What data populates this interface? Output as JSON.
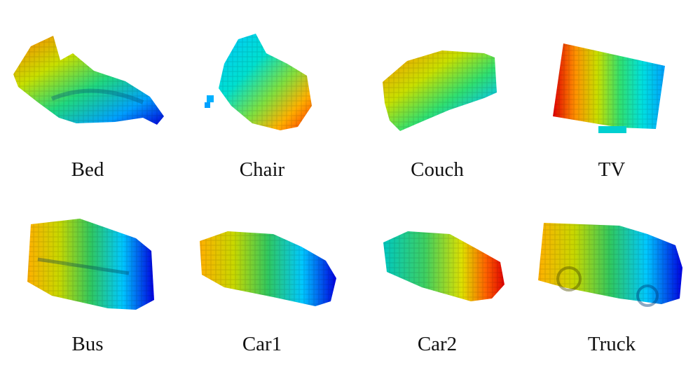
{
  "figure": {
    "objects": [
      {
        "label": "Bed",
        "shape": "bed"
      },
      {
        "label": "Chair",
        "shape": "chair"
      },
      {
        "label": "Couch",
        "shape": "couch"
      },
      {
        "label": "TV",
        "shape": "tv"
      },
      {
        "label": "Bus",
        "shape": "bus"
      },
      {
        "label": "Car1",
        "shape": "car"
      },
      {
        "label": "Car2",
        "shape": "car"
      },
      {
        "label": "Truck",
        "shape": "truck"
      }
    ],
    "colormap": [
      "#0000e0",
      "#00a0ff",
      "#00e0e0",
      "#20e060",
      "#c0e000",
      "#ffc000",
      "#ff6000",
      "#e00000"
    ]
  }
}
